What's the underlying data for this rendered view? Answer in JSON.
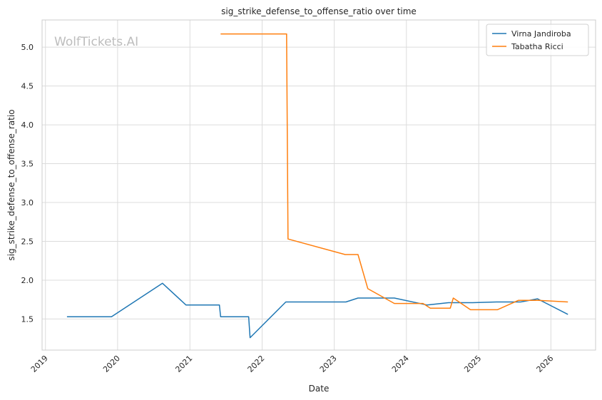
{
  "watermark": "WolfTickets.AI",
  "chart_data": {
    "type": "line",
    "title": "sig_strike_defense_to_offense_ratio over time",
    "xlabel": "Date",
    "ylabel": "sig_strike_defense_to_offense_ratio",
    "xlim": [
      "2018-12-15",
      "2026-08-15"
    ],
    "ylim": [
      1.1,
      5.35
    ],
    "x_ticks": [
      "2019-01-01",
      "2020-01-01",
      "2021-01-01",
      "2022-01-01",
      "2023-01-01",
      "2024-01-01",
      "2025-01-01",
      "2026-01-01"
    ],
    "x_tick_labels": [
      "2019",
      "2020",
      "2021",
      "2022",
      "2023",
      "2024",
      "2025",
      "2026"
    ],
    "y_ticks": [
      1.5,
      2.0,
      2.5,
      3.0,
      3.5,
      4.0,
      4.5,
      5.0
    ],
    "y_tick_labels": [
      "1.5",
      "2.0",
      "2.5",
      "3.0",
      "3.5",
      "4.0",
      "4.5",
      "5.0"
    ],
    "grid": true,
    "legend_position": "top-right",
    "series": [
      {
        "name": "Virna Jandiroba",
        "color": "#1f77b4",
        "x": [
          "2019-04-20",
          "2019-12-01",
          "2020-08-15",
          "2020-12-12",
          "2021-05-30",
          "2021-06-05",
          "2021-10-25",
          "2021-11-01",
          "2022-05-01",
          "2023-03-01",
          "2023-05-01",
          "2023-11-01",
          "2024-04-15",
          "2024-08-01",
          "2024-12-01",
          "2025-04-01",
          "2025-08-01",
          "2025-10-25",
          "2026-03-28"
        ],
        "y": [
          1.53,
          1.53,
          1.96,
          1.68,
          1.68,
          1.53,
          1.53,
          1.26,
          1.72,
          1.72,
          1.77,
          1.77,
          1.68,
          1.71,
          1.71,
          1.72,
          1.72,
          1.76,
          1.56
        ]
      },
      {
        "name": "Tabatha Ricci",
        "color": "#ff7f0e",
        "x": [
          "2021-06-05",
          "2022-05-05",
          "2022-05-12",
          "2023-02-25",
          "2023-05-01",
          "2023-06-20",
          "2023-11-01",
          "2024-03-25",
          "2024-05-01",
          "2024-08-10",
          "2024-08-25",
          "2024-11-20",
          "2025-04-05",
          "2025-07-20",
          "2025-11-01",
          "2026-03-28"
        ],
        "y": [
          5.17,
          5.17,
          2.53,
          2.33,
          2.33,
          1.89,
          1.7,
          1.7,
          1.64,
          1.64,
          1.77,
          1.62,
          1.62,
          1.74,
          1.74,
          1.72
        ]
      }
    ]
  }
}
